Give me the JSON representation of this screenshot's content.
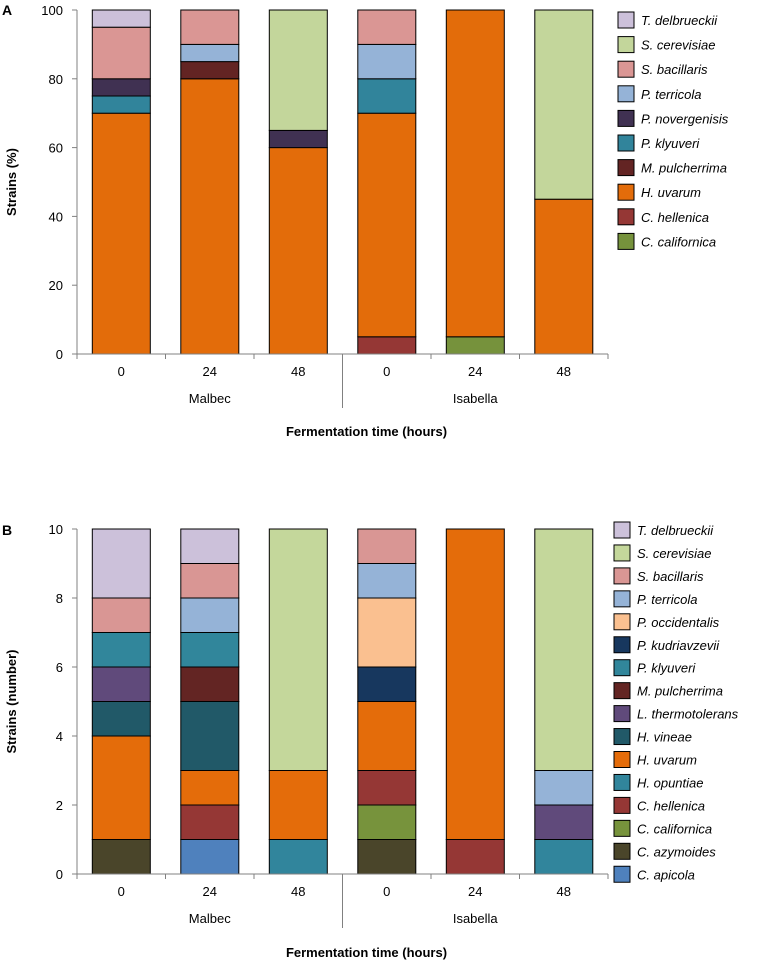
{
  "chart_data": [
    {
      "type": "bar",
      "stacked": true,
      "panel_label": "A",
      "ylabel": "Strains (%)",
      "xlabel": "Fermentation time (hours)",
      "ylim": [
        0,
        100
      ],
      "yticks": [
        0,
        20,
        40,
        60,
        80,
        100
      ],
      "categories": [
        "0",
        "24",
        "48",
        "0",
        "24",
        "48"
      ],
      "groups": [
        {
          "name": "Malbec",
          "categories": [
            0,
            1,
            2
          ]
        },
        {
          "name": "Isabella",
          "categories": [
            3,
            4,
            5
          ]
        }
      ],
      "series": [
        {
          "name": "C. californica",
          "color": "#76923c",
          "values": [
            0,
            0,
            0,
            0,
            5,
            0
          ]
        },
        {
          "name": "C. hellenica",
          "color": "#953735",
          "values": [
            0,
            0,
            0,
            5,
            0,
            0
          ]
        },
        {
          "name": "H. uvarum",
          "color": "#e36c0a",
          "values": [
            70,
            80,
            60,
            65,
            95,
            45
          ]
        },
        {
          "name": "M. pulcherrima",
          "color": "#632423",
          "values": [
            0,
            5,
            0,
            0,
            0,
            0
          ]
        },
        {
          "name": "P. klyuveri",
          "color": "#31849b",
          "values": [
            5,
            0,
            0,
            10,
            0,
            0
          ]
        },
        {
          "name": "P. novergenisis",
          "color": "#403152",
          "values": [
            5,
            0,
            5,
            0,
            0,
            0
          ]
        },
        {
          "name": "P. terricola",
          "color": "#95b3d7",
          "values": [
            0,
            5,
            0,
            10,
            0,
            0
          ]
        },
        {
          "name": "S. bacillaris",
          "color": "#da9694",
          "values": [
            15,
            10,
            0,
            10,
            0,
            0
          ]
        },
        {
          "name": "S. cerevisiae",
          "color": "#c3d69b",
          "values": [
            0,
            0,
            35,
            0,
            0,
            55
          ]
        },
        {
          "name": "T. delbrueckii",
          "color": "#ccc0da",
          "values": [
            5,
            0,
            0,
            0,
            0,
            0
          ]
        }
      ]
    },
    {
      "type": "bar",
      "stacked": true,
      "panel_label": "B",
      "ylabel": "Strains (number)",
      "xlabel": "Fermentation time (hours)",
      "ylim": [
        0,
        10
      ],
      "yticks": [
        0,
        2,
        4,
        6,
        8,
        10
      ],
      "categories": [
        "0",
        "24",
        "48",
        "0",
        "24",
        "48"
      ],
      "groups": [
        {
          "name": "Malbec",
          "categories": [
            0,
            1,
            2
          ]
        },
        {
          "name": "Isabella",
          "categories": [
            3,
            4,
            5
          ]
        }
      ],
      "series": [
        {
          "name": "C. apicola",
          "color": "#4f81bd",
          "values": [
            0,
            1,
            0,
            0,
            0,
            0
          ]
        },
        {
          "name": "C. azymoides",
          "color": "#4a452a",
          "values": [
            1,
            0,
            0,
            1,
            0,
            0
          ]
        },
        {
          "name": "C. californica",
          "color": "#77933c",
          "values": [
            0,
            0,
            0,
            1,
            0,
            0
          ]
        },
        {
          "name": "C. hellenica",
          "color": "#953735",
          "values": [
            0,
            1,
            0,
            1,
            1,
            0
          ]
        },
        {
          "name": "H. opuntiae",
          "color": "#31859c",
          "values": [
            0,
            0,
            1,
            0,
            0,
            1
          ]
        },
        {
          "name": "H. uvarum",
          "color": "#e46c0a",
          "values": [
            3,
            1,
            2,
            2,
            9,
            0
          ]
        },
        {
          "name": "H. vineae",
          "color": "#215968",
          "values": [
            1,
            2,
            0,
            0,
            0,
            0
          ]
        },
        {
          "name": "L. thermotolerans",
          "color": "#604a7b",
          "values": [
            1,
            0,
            0,
            0,
            0,
            1
          ]
        },
        {
          "name": "M. pulcherrima",
          "color": "#632523",
          "values": [
            0,
            1,
            0,
            0,
            0,
            0
          ]
        },
        {
          "name": "P. klyuveri",
          "color": "#31869b",
          "values": [
            1,
            1,
            0,
            0,
            0,
            0
          ]
        },
        {
          "name": "P. kudriavzevii",
          "color": "#17375e",
          "values": [
            0,
            0,
            0,
            1,
            0,
            0
          ]
        },
        {
          "name": "P. occidentalis",
          "color": "#fac090",
          "values": [
            0,
            0,
            0,
            2,
            0,
            0
          ]
        },
        {
          "name": "P. terricola",
          "color": "#95b3d7",
          "values": [
            0,
            1,
            0,
            1,
            0,
            1
          ]
        },
        {
          "name": "S. bacillaris",
          "color": "#d99694",
          "values": [
            1,
            1,
            0,
            1,
            0,
            0
          ]
        },
        {
          "name": "S. cerevisiae",
          "color": "#c4d79b",
          "values": [
            0,
            0,
            7,
            0,
            0,
            7
          ]
        },
        {
          "name": "T. delbrueckii",
          "color": "#ccc1da",
          "values": [
            2,
            1,
            0,
            0,
            0,
            0
          ]
        }
      ]
    }
  ]
}
